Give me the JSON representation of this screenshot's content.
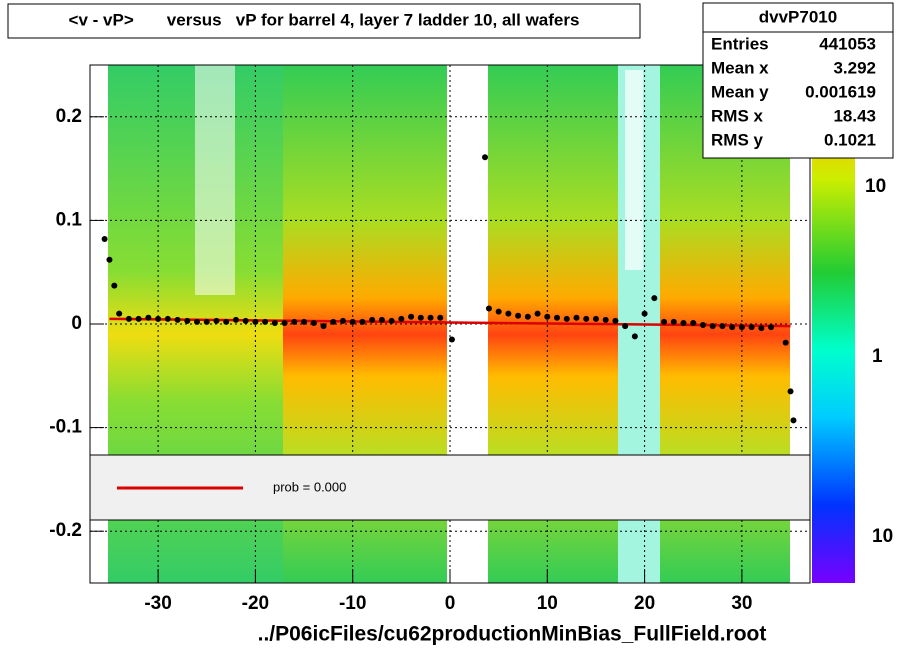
{
  "chart_data": {
    "type": "scatter",
    "title": "<v - vP>       versus   vP for barrel 4, layer 7 ladder 10, all wafers",
    "x_label": "../P06icFiles/cu62productionMinBias_FullField.root",
    "xlim": [
      -37,
      37
    ],
    "ylim": [
      -0.25,
      0.25
    ],
    "xticks": [
      -30,
      -20,
      -10,
      0,
      10,
      20,
      30
    ],
    "yticks": [
      -0.2,
      -0.1,
      0,
      0.1,
      0.2
    ],
    "grid": true,
    "series": [
      {
        "color": "#000000",
        "x": [
          -35.5,
          -35,
          -34.5,
          -34,
          -33,
          -32,
          -31,
          -30,
          -29,
          -28,
          -27,
          -26,
          -25,
          -24,
          -23,
          -22,
          -21,
          -20,
          -19,
          -18,
          -17,
          -16,
          -15,
          -14,
          -13,
          -12,
          -11,
          -10,
          -9,
          -8,
          -7,
          -6,
          -5,
          -4,
          -3,
          -2,
          -1,
          0.2,
          3.6,
          4,
          5,
          6,
          7,
          8,
          9,
          10,
          11,
          12,
          13,
          14,
          15,
          16,
          17,
          18,
          19,
          20,
          21,
          22,
          23,
          24,
          25,
          26,
          27,
          28,
          29,
          30,
          31,
          32,
          33,
          34.5,
          35,
          35.3
        ],
        "values": [
          0.082,
          0.062,
          0.037,
          0.01,
          0.005,
          0.005,
          0.006,
          0.005,
          0.005,
          0.004,
          0.003,
          0.002,
          0.002,
          0.003,
          0.002,
          0.004,
          0.003,
          0.002,
          0.002,
          0.001,
          0.001,
          0.002,
          0.002,
          0.001,
          -0.002,
          0.002,
          0.003,
          0.002,
          0.002,
          0.004,
          0.004,
          0.003,
          0.005,
          0.007,
          0.006,
          0.006,
          0.006,
          -0.015,
          0.161,
          0.015,
          0.012,
          0.01,
          0.008,
          0.007,
          0.01,
          0.007,
          0.006,
          0.005,
          0.006,
          0.005,
          0.005,
          0.004,
          0.003,
          -0.002,
          -0.012,
          0.01,
          0.025,
          0.002,
          0.002,
          0.001,
          0.001,
          -0.001,
          -0.002,
          -0.002,
          -0.003,
          -0.003,
          -0.003,
          -0.004,
          -0.003,
          -0.018,
          -0.065,
          -0.093
        ]
      }
    ],
    "fit": {
      "color": "#dd0000",
      "x": [
        -35,
        35
      ],
      "values": [
        0.005,
        -0.002
      ]
    },
    "legend_text": "prob = 0.000",
    "stats": {
      "name": "dvvP7010",
      "rows": [
        [
          "Entries",
          "441053"
        ],
        [
          "Mean x",
          "3.292"
        ],
        [
          "Mean y",
          "0.001619"
        ],
        [
          "RMS x",
          "18.43"
        ],
        [
          "RMS y",
          "0.1021"
        ]
      ]
    },
    "z_labels": [
      "10",
      "1",
      "10"
    ]
  }
}
